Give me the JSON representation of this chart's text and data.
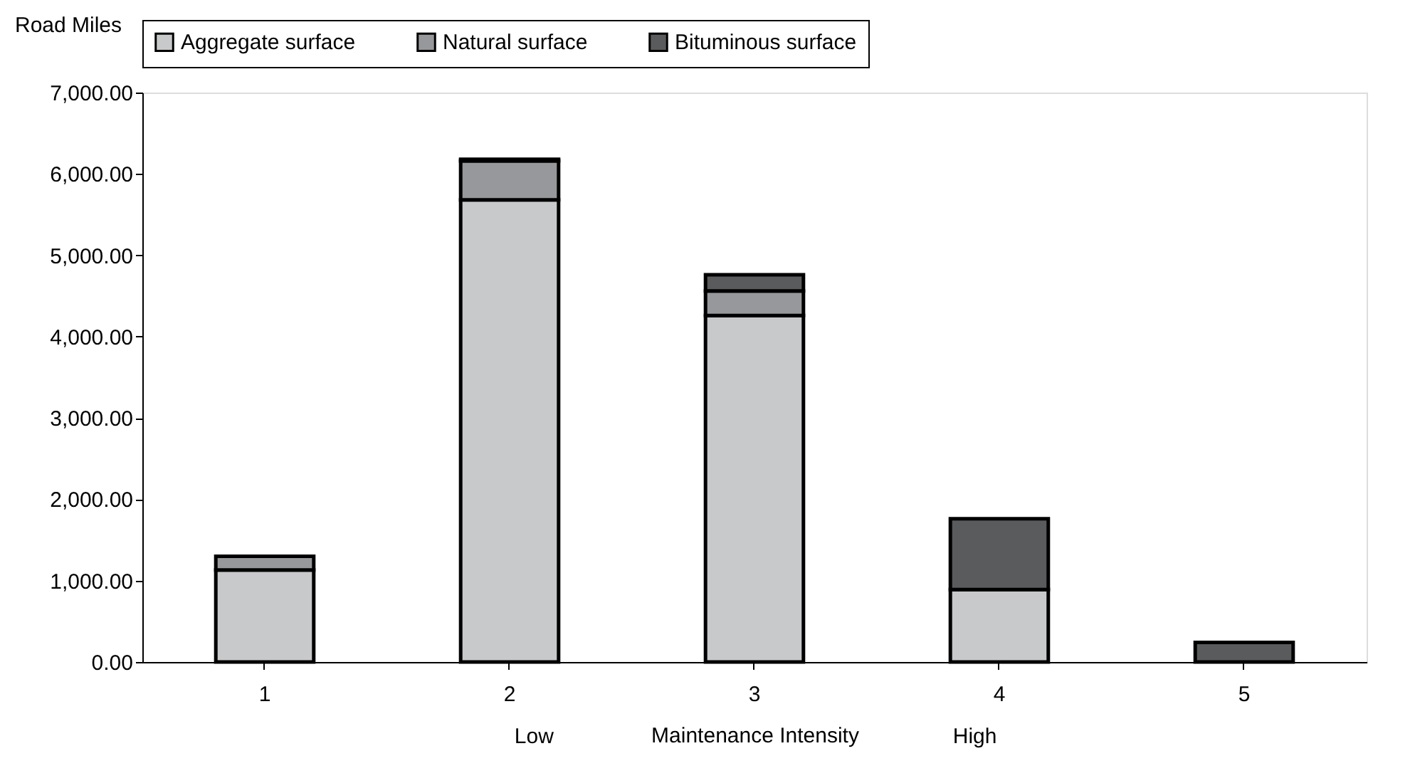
{
  "chart_data": {
    "type": "bar",
    "stacked": true,
    "ylabel": "Road Miles",
    "xlabel": "Maintenance Intensity",
    "annotations": [
      "Low",
      "High"
    ],
    "categories": [
      "1",
      "2",
      "3",
      "4",
      "5"
    ],
    "series": [
      {
        "name": "Aggregate surface",
        "color": "#c8c9cb",
        "values": [
          1130,
          5680,
          4260,
          890,
          null
        ]
      },
      {
        "name": "Natural surface",
        "color": "#97989b",
        "values": [
          170,
          480,
          300,
          null,
          null
        ]
      },
      {
        "name": "Bituminous surface",
        "color": "#5a5b5d",
        "values": [
          null,
          20,
          200,
          870,
          240
        ]
      }
    ],
    "ylim": [
      0,
      7000
    ],
    "yticks": [
      {
        "value": 0,
        "label": "0.00"
      },
      {
        "value": 1000,
        "label": "1,000.00"
      },
      {
        "value": 2000,
        "label": "2,000.00"
      },
      {
        "value": 3000,
        "label": "3,000.00"
      },
      {
        "value": 4000,
        "label": "4,000.00"
      },
      {
        "value": 5000,
        "label": "5,000.00"
      },
      {
        "value": 6000,
        "label": "6,000.00"
      },
      {
        "value": 7000,
        "label": "7,000.00"
      }
    ],
    "grid": false,
    "legend": "top"
  }
}
